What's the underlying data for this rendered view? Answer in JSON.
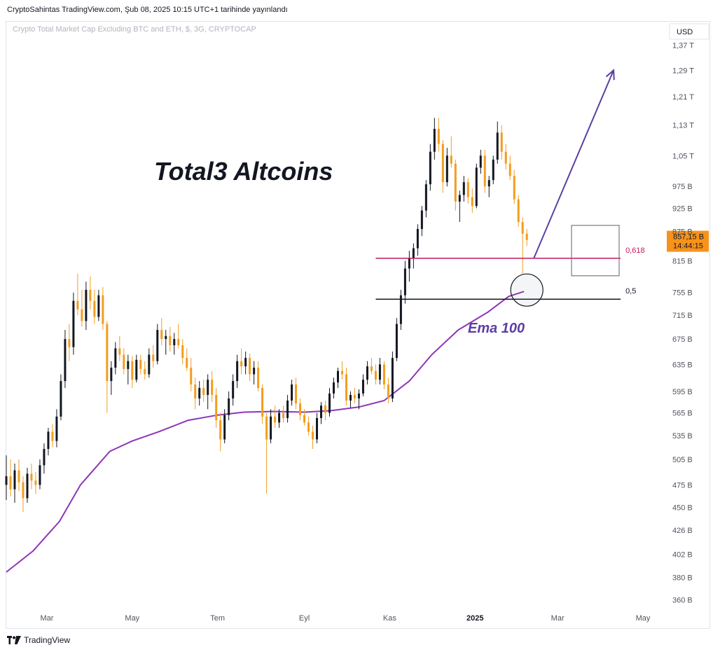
{
  "header": {
    "publish_text": "CryptoSahintas TradingView.com, Şub 08, 2025 10:15 UTC+1 tarihinde yayınlandı"
  },
  "footer": {
    "brand": "TradingView",
    "logo_icon": "tradingview-logo-icon"
  },
  "colors": {
    "up_candle": "#131722",
    "down_candle": "#f29d1f",
    "ema": "#8e35b8",
    "fib_0618": "#c2185b",
    "fib_05": "#131722",
    "arrow": "#5b3fa3",
    "price_tag": "#f7931a"
  },
  "chart_data": {
    "type": "candlestick",
    "title": "Crypto Total Market Cap Excluding BTC and ETH, $, 3G, CRYPTOCAP",
    "currency_label": "USD",
    "x_tick_labels": [
      "Mar",
      "May",
      "Tem",
      "Eyl",
      "Kas",
      "2025",
      "Mar",
      "May"
    ],
    "y_tick_labels": [
      "1,37 T",
      "1,29 T",
      "1,21 T",
      "1,13 T",
      "1,05 T",
      "975 B",
      "925 B",
      "875 B",
      "815 B",
      "755 B",
      "715 B",
      "675 B",
      "635 B",
      "595 B",
      "565 B",
      "535 B",
      "505 B",
      "475 B",
      "450 B",
      "426 B",
      "402 B",
      "380 B",
      "360 B"
    ],
    "y_tick_values": [
      1370,
      1290,
      1210,
      1130,
      1050,
      975,
      925,
      875,
      815,
      755,
      715,
      675,
      635,
      595,
      565,
      535,
      505,
      475,
      450,
      426,
      402,
      380,
      360
    ],
    "y_scale": "log",
    "y_unit": "billion USD",
    "ylim": [
      352,
      1390
    ],
    "x_range": [
      "2024-02-01",
      "2025-05-15"
    ],
    "last_price_label": "857,15 B",
    "countdown_label": "14:44:15",
    "last_price": 857.15,
    "annotation_title": "Total3 Altcoins",
    "ema_label": "Ema 100",
    "fib_levels": [
      {
        "label": "0,618",
        "value": 820
      },
      {
        "label": "0,5",
        "value": 743
      }
    ],
    "projection_arrow": {
      "from": {
        "date": "2025-02-12",
        "value": 820
      },
      "to": {
        "date": "2025-04-10",
        "value": 1290
      }
    },
    "ema_100": [
      {
        "date": "2024-02-01",
        "value": 385
      },
      {
        "date": "2024-02-20",
        "value": 405
      },
      {
        "date": "2024-03-10",
        "value": 435
      },
      {
        "date": "2024-03-25",
        "value": 475
      },
      {
        "date": "2024-04-15",
        "value": 515
      },
      {
        "date": "2024-05-01",
        "value": 528
      },
      {
        "date": "2024-05-20",
        "value": 540
      },
      {
        "date": "2024-06-10",
        "value": 555
      },
      {
        "date": "2024-07-01",
        "value": 562
      },
      {
        "date": "2024-07-20",
        "value": 566
      },
      {
        "date": "2024-08-10",
        "value": 567
      },
      {
        "date": "2024-09-01",
        "value": 566
      },
      {
        "date": "2024-09-20",
        "value": 568
      },
      {
        "date": "2024-10-10",
        "value": 573
      },
      {
        "date": "2024-10-28",
        "value": 582
      },
      {
        "date": "2024-11-15",
        "value": 610
      },
      {
        "date": "2024-12-01",
        "value": 650
      },
      {
        "date": "2024-12-20",
        "value": 690
      },
      {
        "date": "2025-01-10",
        "value": 720
      },
      {
        "date": "2025-01-25",
        "value": 748
      },
      {
        "date": "2025-02-05",
        "value": 757
      }
    ],
    "candles": [
      {
        "date": "2024-02-01",
        "open": 475,
        "high": 510,
        "low": 458,
        "close": 485
      },
      {
        "date": "2024-02-04",
        "open": 485,
        "high": 505,
        "low": 462,
        "close": 470
      },
      {
        "date": "2024-02-07",
        "open": 470,
        "high": 500,
        "low": 455,
        "close": 492
      },
      {
        "date": "2024-02-10",
        "open": 492,
        "high": 505,
        "low": 468,
        "close": 478
      },
      {
        "date": "2024-02-13",
        "open": 478,
        "high": 485,
        "low": 445,
        "close": 460
      },
      {
        "date": "2024-02-16",
        "open": 460,
        "high": 495,
        "low": 455,
        "close": 488
      },
      {
        "date": "2024-02-19",
        "open": 488,
        "high": 500,
        "low": 470,
        "close": 480
      },
      {
        "date": "2024-02-22",
        "open": 480,
        "high": 490,
        "low": 465,
        "close": 475
      },
      {
        "date": "2024-02-25",
        "open": 475,
        "high": 505,
        "low": 470,
        "close": 498
      },
      {
        "date": "2024-02-28",
        "open": 498,
        "high": 525,
        "low": 488,
        "close": 518
      },
      {
        "date": "2024-03-02",
        "open": 518,
        "high": 545,
        "low": 510,
        "close": 540
      },
      {
        "date": "2024-03-05",
        "open": 540,
        "high": 550,
        "low": 520,
        "close": 528
      },
      {
        "date": "2024-03-08",
        "open": 528,
        "high": 570,
        "low": 520,
        "close": 560
      },
      {
        "date": "2024-03-11",
        "open": 560,
        "high": 620,
        "low": 555,
        "close": 610
      },
      {
        "date": "2024-03-14",
        "open": 610,
        "high": 690,
        "low": 600,
        "close": 675
      },
      {
        "date": "2024-03-17",
        "open": 675,
        "high": 700,
        "low": 640,
        "close": 662
      },
      {
        "date": "2024-03-20",
        "open": 662,
        "high": 755,
        "low": 650,
        "close": 740
      },
      {
        "date": "2024-03-23",
        "open": 740,
        "high": 790,
        "low": 715,
        "close": 725
      },
      {
        "date": "2024-03-26",
        "open": 725,
        "high": 760,
        "low": 695,
        "close": 705
      },
      {
        "date": "2024-03-29",
        "open": 705,
        "high": 775,
        "low": 690,
        "close": 760
      },
      {
        "date": "2024-04-01",
        "open": 760,
        "high": 785,
        "low": 725,
        "close": 740
      },
      {
        "date": "2024-04-04",
        "open": 740,
        "high": 760,
        "low": 700,
        "close": 712
      },
      {
        "date": "2024-04-07",
        "open": 712,
        "high": 760,
        "low": 705,
        "close": 750
      },
      {
        "date": "2024-04-10",
        "open": 750,
        "high": 765,
        "low": 690,
        "close": 700
      },
      {
        "date": "2024-04-13",
        "open": 700,
        "high": 705,
        "low": 565,
        "close": 610
      },
      {
        "date": "2024-04-16",
        "open": 610,
        "high": 640,
        "low": 590,
        "close": 630
      },
      {
        "date": "2024-04-19",
        "open": 630,
        "high": 670,
        "low": 620,
        "close": 660
      },
      {
        "date": "2024-04-22",
        "open": 660,
        "high": 680,
        "low": 640,
        "close": 650
      },
      {
        "date": "2024-04-25",
        "open": 650,
        "high": 660,
        "low": 620,
        "close": 628
      },
      {
        "date": "2024-04-28",
        "open": 628,
        "high": 650,
        "low": 605,
        "close": 640
      },
      {
        "date": "2024-05-01",
        "open": 640,
        "high": 648,
        "low": 600,
        "close": 612
      },
      {
        "date": "2024-05-04",
        "open": 612,
        "high": 650,
        "low": 608,
        "close": 642
      },
      {
        "date": "2024-05-07",
        "open": 642,
        "high": 650,
        "low": 620,
        "close": 628
      },
      {
        "date": "2024-05-10",
        "open": 628,
        "high": 640,
        "low": 612,
        "close": 620
      },
      {
        "date": "2024-05-13",
        "open": 620,
        "high": 660,
        "low": 615,
        "close": 650
      },
      {
        "date": "2024-05-16",
        "open": 650,
        "high": 665,
        "low": 630,
        "close": 640
      },
      {
        "date": "2024-05-19",
        "open": 640,
        "high": 700,
        "low": 635,
        "close": 690
      },
      {
        "date": "2024-05-22",
        "open": 690,
        "high": 710,
        "low": 665,
        "close": 675
      },
      {
        "date": "2024-05-25",
        "open": 675,
        "high": 690,
        "low": 650,
        "close": 680
      },
      {
        "date": "2024-05-28",
        "open": 680,
        "high": 695,
        "low": 655,
        "close": 665
      },
      {
        "date": "2024-05-31",
        "open": 665,
        "high": 685,
        "low": 650,
        "close": 675
      },
      {
        "date": "2024-06-03",
        "open": 675,
        "high": 700,
        "low": 660,
        "close": 665
      },
      {
        "date": "2024-06-06",
        "open": 665,
        "high": 675,
        "low": 635,
        "close": 645
      },
      {
        "date": "2024-06-09",
        "open": 645,
        "high": 660,
        "low": 625,
        "close": 630
      },
      {
        "date": "2024-06-12",
        "open": 630,
        "high": 645,
        "low": 595,
        "close": 605
      },
      {
        "date": "2024-06-15",
        "open": 605,
        "high": 615,
        "low": 570,
        "close": 585
      },
      {
        "date": "2024-06-18",
        "open": 585,
        "high": 610,
        "low": 575,
        "close": 600
      },
      {
        "date": "2024-06-21",
        "open": 600,
        "high": 612,
        "low": 580,
        "close": 590
      },
      {
        "date": "2024-06-24",
        "open": 590,
        "high": 620,
        "low": 570,
        "close": 612
      },
      {
        "date": "2024-06-27",
        "open": 612,
        "high": 625,
        "low": 580,
        "close": 590
      },
      {
        "date": "2024-06-30",
        "open": 590,
        "high": 600,
        "low": 545,
        "close": 555
      },
      {
        "date": "2024-07-03",
        "open": 555,
        "high": 565,
        "low": 515,
        "close": 530
      },
      {
        "date": "2024-07-06",
        "open": 530,
        "high": 570,
        "low": 525,
        "close": 562
      },
      {
        "date": "2024-07-09",
        "open": 562,
        "high": 595,
        "low": 555,
        "close": 585
      },
      {
        "date": "2024-07-12",
        "open": 585,
        "high": 620,
        "low": 575,
        "close": 610
      },
      {
        "date": "2024-07-15",
        "open": 610,
        "high": 650,
        "low": 600,
        "close": 640
      },
      {
        "date": "2024-07-18",
        "open": 640,
        "high": 660,
        "low": 620,
        "close": 632
      },
      {
        "date": "2024-07-21",
        "open": 632,
        "high": 655,
        "low": 620,
        "close": 645
      },
      {
        "date": "2024-07-24",
        "open": 645,
        "high": 652,
        "low": 610,
        "close": 620
      },
      {
        "date": "2024-07-27",
        "open": 620,
        "high": 640,
        "low": 605,
        "close": 630
      },
      {
        "date": "2024-07-30",
        "open": 630,
        "high": 640,
        "low": 595,
        "close": 600
      },
      {
        "date": "2024-08-02",
        "open": 600,
        "high": 605,
        "low": 550,
        "close": 560
      },
      {
        "date": "2024-08-05",
        "open": 560,
        "high": 565,
        "low": 465,
        "close": 530
      },
      {
        "date": "2024-08-08",
        "open": 530,
        "high": 570,
        "low": 525,
        "close": 560
      },
      {
        "date": "2024-08-11",
        "open": 560,
        "high": 575,
        "low": 545,
        "close": 552
      },
      {
        "date": "2024-08-14",
        "open": 552,
        "high": 570,
        "low": 545,
        "close": 565
      },
      {
        "date": "2024-08-17",
        "open": 565,
        "high": 575,
        "low": 552,
        "close": 558
      },
      {
        "date": "2024-08-20",
        "open": 558,
        "high": 590,
        "low": 552,
        "close": 582
      },
      {
        "date": "2024-08-23",
        "open": 582,
        "high": 612,
        "low": 575,
        "close": 605
      },
      {
        "date": "2024-08-26",
        "open": 605,
        "high": 615,
        "low": 570,
        "close": 578
      },
      {
        "date": "2024-08-29",
        "open": 578,
        "high": 585,
        "low": 555,
        "close": 562
      },
      {
        "date": "2024-09-01",
        "open": 562,
        "high": 570,
        "low": 548,
        "close": 552
      },
      {
        "date": "2024-09-04",
        "open": 552,
        "high": 560,
        "low": 535,
        "close": 540
      },
      {
        "date": "2024-09-07",
        "open": 540,
        "high": 548,
        "low": 518,
        "close": 530
      },
      {
        "date": "2024-09-10",
        "open": 530,
        "high": 565,
        "low": 525,
        "close": 558
      },
      {
        "date": "2024-09-13",
        "open": 558,
        "high": 580,
        "low": 550,
        "close": 575
      },
      {
        "date": "2024-09-16",
        "open": 575,
        "high": 582,
        "low": 555,
        "close": 565
      },
      {
        "date": "2024-09-19",
        "open": 565,
        "high": 600,
        "low": 560,
        "close": 592
      },
      {
        "date": "2024-09-22",
        "open": 592,
        "high": 615,
        "low": 585,
        "close": 608
      },
      {
        "date": "2024-09-25",
        "open": 608,
        "high": 630,
        "low": 600,
        "close": 625
      },
      {
        "date": "2024-09-28",
        "open": 625,
        "high": 640,
        "low": 612,
        "close": 620
      },
      {
        "date": "2024-10-01",
        "open": 620,
        "high": 630,
        "low": 575,
        "close": 582
      },
      {
        "date": "2024-10-04",
        "open": 582,
        "high": 595,
        "low": 572,
        "close": 590
      },
      {
        "date": "2024-10-07",
        "open": 590,
        "high": 600,
        "low": 578,
        "close": 585
      },
      {
        "date": "2024-10-10",
        "open": 585,
        "high": 598,
        "low": 570,
        "close": 592
      },
      {
        "date": "2024-10-13",
        "open": 592,
        "high": 620,
        "low": 588,
        "close": 612
      },
      {
        "date": "2024-10-16",
        "open": 612,
        "high": 640,
        "low": 605,
        "close": 632
      },
      {
        "date": "2024-10-19",
        "open": 632,
        "high": 645,
        "low": 620,
        "close": 625
      },
      {
        "date": "2024-10-22",
        "open": 625,
        "high": 635,
        "low": 605,
        "close": 612
      },
      {
        "date": "2024-10-25",
        "open": 612,
        "high": 645,
        "low": 605,
        "close": 635
      },
      {
        "date": "2024-10-28",
        "open": 635,
        "high": 640,
        "low": 598,
        "close": 605
      },
      {
        "date": "2024-10-31",
        "open": 605,
        "high": 615,
        "low": 578,
        "close": 585
      },
      {
        "date": "2024-11-03",
        "open": 585,
        "high": 655,
        "low": 580,
        "close": 645
      },
      {
        "date": "2024-11-06",
        "open": 645,
        "high": 710,
        "low": 640,
        "close": 700
      },
      {
        "date": "2024-11-09",
        "open": 700,
        "high": 760,
        "low": 690,
        "close": 750
      },
      {
        "date": "2024-11-12",
        "open": 750,
        "high": 815,
        "low": 735,
        "close": 800
      },
      {
        "date": "2024-11-15",
        "open": 800,
        "high": 835,
        "low": 775,
        "close": 820
      },
      {
        "date": "2024-11-18",
        "open": 820,
        "high": 850,
        "low": 800,
        "close": 840
      },
      {
        "date": "2024-11-21",
        "open": 840,
        "high": 890,
        "low": 825,
        "close": 880
      },
      {
        "date": "2024-11-24",
        "open": 880,
        "high": 930,
        "low": 865,
        "close": 920
      },
      {
        "date": "2024-11-27",
        "open": 920,
        "high": 990,
        "low": 905,
        "close": 980
      },
      {
        "date": "2024-11-30",
        "open": 980,
        "high": 1080,
        "low": 965,
        "close": 1060
      },
      {
        "date": "2024-12-03",
        "open": 1060,
        "high": 1150,
        "low": 1040,
        "close": 1120
      },
      {
        "date": "2024-12-06",
        "open": 1120,
        "high": 1150,
        "low": 1060,
        "close": 1080
      },
      {
        "date": "2024-12-09",
        "open": 1080,
        "high": 1090,
        "low": 960,
        "close": 985
      },
      {
        "date": "2024-12-12",
        "open": 985,
        "high": 1070,
        "low": 975,
        "close": 1050
      },
      {
        "date": "2024-12-15",
        "open": 1050,
        "high": 1100,
        "low": 1020,
        "close": 1030
      },
      {
        "date": "2024-12-18",
        "open": 1030,
        "high": 1040,
        "low": 920,
        "close": 940
      },
      {
        "date": "2024-12-21",
        "open": 940,
        "high": 965,
        "low": 895,
        "close": 955
      },
      {
        "date": "2024-12-24",
        "open": 955,
        "high": 1000,
        "low": 940,
        "close": 985
      },
      {
        "date": "2024-12-27",
        "open": 985,
        "high": 995,
        "low": 935,
        "close": 950
      },
      {
        "date": "2024-12-30",
        "open": 950,
        "high": 970,
        "low": 915,
        "close": 930
      },
      {
        "date": "2025-01-02",
        "open": 930,
        "high": 1030,
        "low": 925,
        "close": 1020
      },
      {
        "date": "2025-01-05",
        "open": 1020,
        "high": 1065,
        "low": 1005,
        "close": 1050
      },
      {
        "date": "2025-01-08",
        "open": 1050,
        "high": 1065,
        "low": 960,
        "close": 975
      },
      {
        "date": "2025-01-11",
        "open": 975,
        "high": 1000,
        "low": 950,
        "close": 990
      },
      {
        "date": "2025-01-14",
        "open": 990,
        "high": 1050,
        "low": 980,
        "close": 1040
      },
      {
        "date": "2025-01-17",
        "open": 1040,
        "high": 1140,
        "low": 1030,
        "close": 1110
      },
      {
        "date": "2025-01-20",
        "open": 1110,
        "high": 1130,
        "low": 1040,
        "close": 1060
      },
      {
        "date": "2025-01-23",
        "open": 1060,
        "high": 1080,
        "low": 1015,
        "close": 1030
      },
      {
        "date": "2025-01-26",
        "open": 1030,
        "high": 1050,
        "low": 990,
        "close": 1000
      },
      {
        "date": "2025-01-29",
        "open": 1000,
        "high": 1015,
        "low": 935,
        "close": 945
      },
      {
        "date": "2025-02-01",
        "open": 945,
        "high": 955,
        "low": 885,
        "close": 895
      },
      {
        "date": "2025-02-04",
        "open": 895,
        "high": 905,
        "low": 790,
        "close": 870
      },
      {
        "date": "2025-02-07",
        "open": 870,
        "high": 880,
        "low": 845,
        "close": 857
      }
    ]
  }
}
